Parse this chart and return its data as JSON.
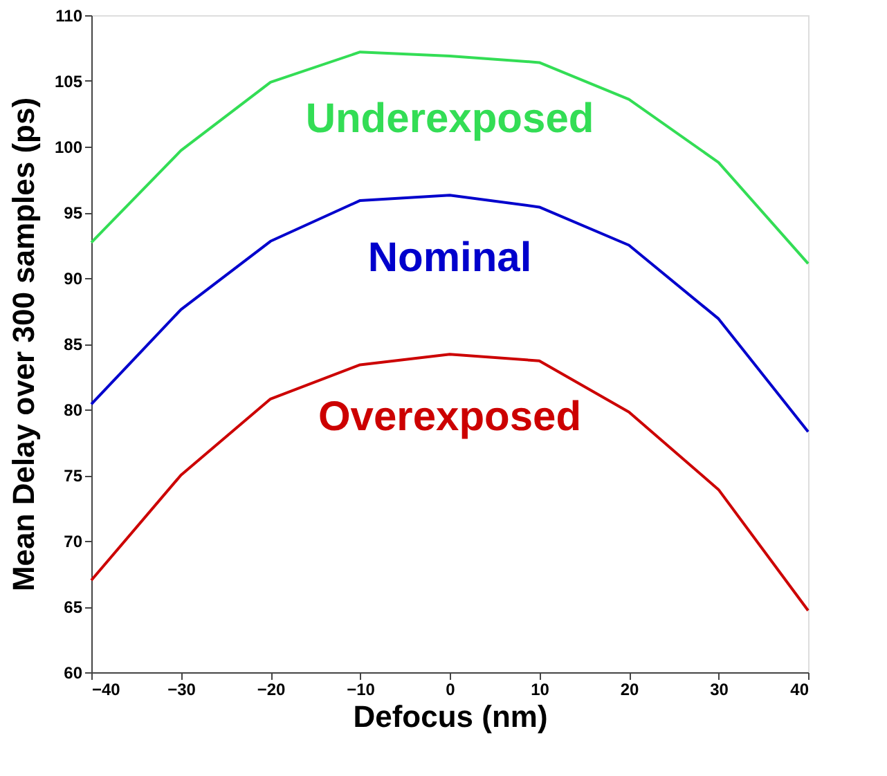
{
  "chart_data": {
    "type": "line",
    "xlabel": "Defocus (nm)",
    "ylabel": "Mean Delay over 300 samples (ps)",
    "x": [
      -40,
      -30,
      -20,
      -10,
      0,
      10,
      20,
      30,
      40
    ],
    "series": [
      {
        "name": "Underexposed",
        "color": "#33dd55",
        "values": [
          92.7,
          99.7,
          104.9,
          107.2,
          106.9,
          106.4,
          103.6,
          98.8,
          91.1
        ]
      },
      {
        "name": "Nominal",
        "color": "#0000cc",
        "values": [
          80.4,
          87.6,
          92.8,
          95.9,
          96.3,
          95.4,
          92.5,
          86.9,
          78.3
        ]
      },
      {
        "name": "Overexposed",
        "color": "#cc0000",
        "values": [
          67.0,
          75.0,
          80.8,
          83.4,
          84.2,
          83.7,
          79.8,
          73.9,
          64.7
        ]
      }
    ],
    "xlim": [
      -40,
      40
    ],
    "xticks": [
      -40,
      -30,
      -20,
      -10,
      0,
      10,
      20,
      30,
      40
    ],
    "ylim": [
      60,
      110
    ],
    "yticks": [
      60,
      65,
      70,
      75,
      80,
      85,
      90,
      95,
      100,
      105,
      110
    ],
    "grid": false,
    "legend": false,
    "marker": "none",
    "line_style": "solid"
  }
}
